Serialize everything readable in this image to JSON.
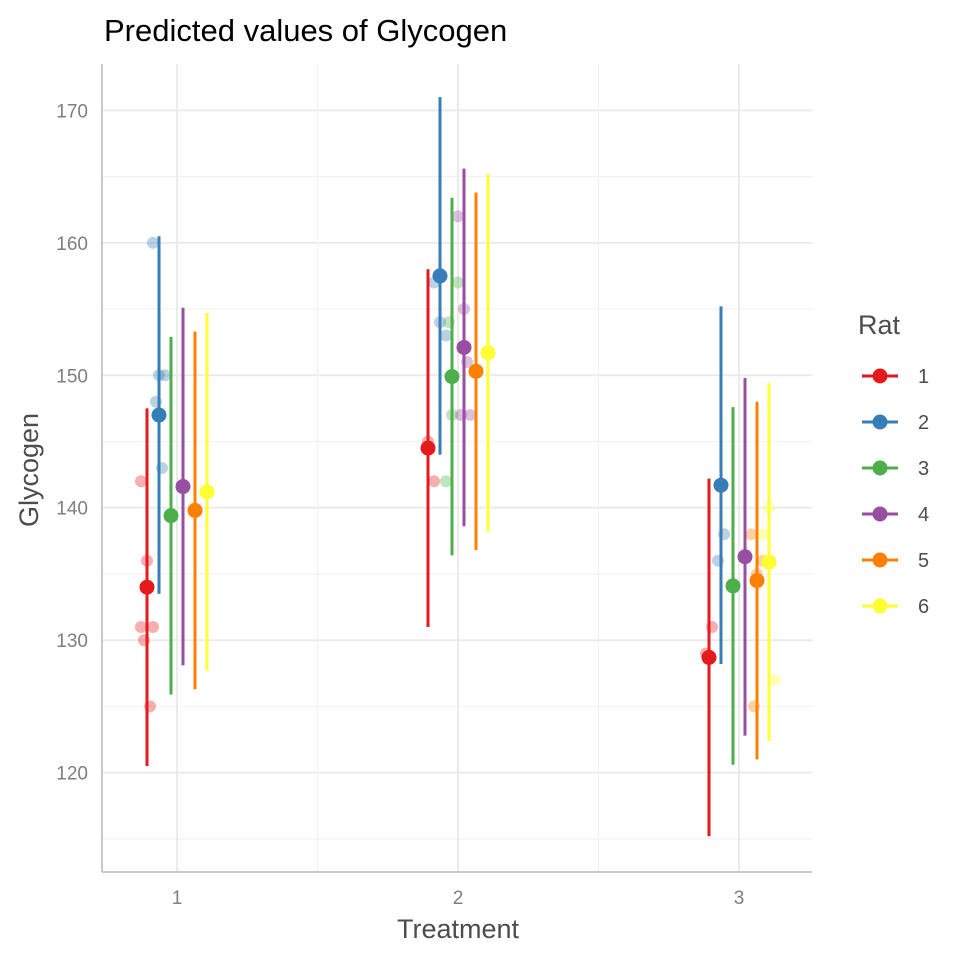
{
  "chart_data": {
    "type": "scatter",
    "title": "Predicted values of Glycogen",
    "xlabel": "Treatment",
    "ylabel": "Glycogen",
    "categories": [
      "1",
      "2",
      "3"
    ],
    "yticks": [
      120,
      130,
      140,
      150,
      160,
      170
    ],
    "ylim": [
      112.5,
      173.5
    ],
    "grid": true,
    "legend": {
      "title": "Rat",
      "position": "right"
    },
    "series": [
      {
        "name": "1",
        "color": "#e41a1c",
        "predicted": [
          134.0,
          144.5,
          128.7
        ],
        "ci_low": [
          120.5,
          131.0,
          115.2
        ],
        "ci_high": [
          147.5,
          158.0,
          142.2
        ],
        "raw": [
          {
            "x": 1,
            "y": 142
          },
          {
            "x": 1,
            "y": 136
          },
          {
            "x": 1,
            "y": 131
          },
          {
            "x": 1,
            "y": 130
          },
          {
            "x": 1,
            "y": 125
          },
          {
            "x": 1,
            "y": 131
          },
          {
            "x": 2,
            "y": 145
          },
          {
            "x": 2,
            "y": 142
          },
          {
            "x": 3,
            "y": 129
          },
          {
            "x": 3,
            "y": 131
          }
        ]
      },
      {
        "name": "2",
        "color": "#377eb8",
        "predicted": [
          147.0,
          157.5,
          141.7
        ],
        "ci_low": [
          133.5,
          144.0,
          128.2
        ],
        "ci_high": [
          160.5,
          171.0,
          155.2
        ],
        "raw": [
          {
            "x": 1,
            "y": 160
          },
          {
            "x": 1,
            "y": 150
          },
          {
            "x": 1,
            "y": 150
          },
          {
            "x": 1,
            "y": 148
          },
          {
            "x": 1,
            "y": 143
          },
          {
            "x": 2,
            "y": 157
          },
          {
            "x": 2,
            "y": 154
          },
          {
            "x": 2,
            "y": 153
          },
          {
            "x": 3,
            "y": 136
          },
          {
            "x": 3,
            "y": 138
          }
        ]
      },
      {
        "name": "3",
        "color": "#4daf4a",
        "predicted": [
          139.4,
          149.9,
          134.1
        ],
        "ci_low": [
          125.9,
          136.4,
          120.6
        ],
        "ci_high": [
          152.9,
          163.4,
          147.6
        ],
        "raw": [
          {
            "x": 2,
            "y": 142
          },
          {
            "x": 2,
            "y": 147
          },
          {
            "x": 2,
            "y": 157
          },
          {
            "x": 2,
            "y": 154
          }
        ]
      },
      {
        "name": "4",
        "color": "#984ea3",
        "predicted": [
          141.6,
          152.1,
          136.3
        ],
        "ci_low": [
          128.1,
          138.6,
          122.8
        ],
        "ci_high": [
          155.1,
          165.6,
          149.8
        ],
        "raw": [
          {
            "x": 2,
            "y": 162
          },
          {
            "x": 2,
            "y": 155
          },
          {
            "x": 2,
            "y": 147
          },
          {
            "x": 2,
            "y": 147
          },
          {
            "x": 2,
            "y": 151
          }
        ]
      },
      {
        "name": "5",
        "color": "#ff7f00",
        "predicted": [
          139.8,
          150.3,
          134.5
        ],
        "ci_low": [
          126.3,
          136.8,
          121.0
        ],
        "ci_high": [
          153.3,
          163.8,
          148.0
        ],
        "raw": [
          {
            "x": 3,
            "y": 138
          },
          {
            "x": 3,
            "y": 135
          },
          {
            "x": 3,
            "y": 136
          },
          {
            "x": 3,
            "y": 125
          }
        ]
      },
      {
        "name": "6",
        "color": "#ffff33",
        "predicted": [
          141.2,
          151.7,
          135.9
        ],
        "ci_low": [
          127.7,
          138.2,
          122.4
        ],
        "ci_high": [
          154.7,
          165.2,
          149.4
        ],
        "raw": [
          {
            "x": 3,
            "y": 138
          },
          {
            "x": 3,
            "y": 140
          },
          {
            "x": 3,
            "y": 127
          }
        ]
      }
    ]
  }
}
